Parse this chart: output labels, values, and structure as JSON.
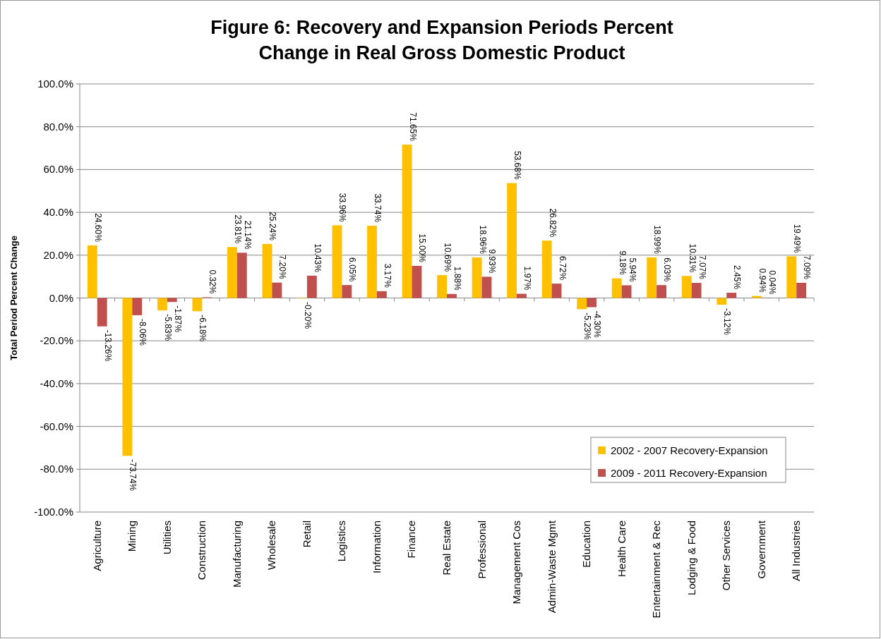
{
  "chart_data": {
    "type": "bar",
    "title": "Figure 6: Recovery and Expansion Periods Percent\nChange in Real Gross Domestic Product",
    "ylabel": "Total Period Percent Change",
    "categories": [
      "Agriculture",
      "Mining",
      "Utilities",
      "Construction",
      "Manufacturing",
      "Wholesale",
      "Retail",
      "Logistics",
      "Information",
      "Finance",
      "Real Estate",
      "Professional",
      "Management Cos",
      "Admin-Waste Mgmt",
      "Education",
      "Health Care",
      "Entertainment & Rec",
      "Lodging & Food",
      "Other Services",
      "Government",
      "All Industries"
    ],
    "series": [
      {
        "name": "2002 - 2007 Recovery-Expansion",
        "color": "#ffc000",
        "values": [
          24.6,
          -73.74,
          -5.83,
          -6.18,
          23.81,
          25.24,
          -0.2,
          33.96,
          33.74,
          71.65,
          10.69,
          18.96,
          53.68,
          26.82,
          -5.23,
          9.18,
          18.99,
          10.31,
          -3.12,
          0.94,
          19.49
        ],
        "value_labels": [
          "24.60%",
          "-73.74%",
          "-5.83%",
          "-6.18%",
          "23.81%",
          "25.24%",
          "-0.20%",
          "33.96%",
          "33.74%",
          "71.65%",
          "10.69%",
          "18.96%",
          "53.68%",
          "26.82%",
          "-5.23%",
          "9.18%",
          "18.99%",
          "10.31%",
          "-3.12%",
          "0.94%",
          "19.49%"
        ]
      },
      {
        "name": "2009 - 2011 Recovery-Expansion",
        "color": "#c0504d",
        "values": [
          -13.26,
          -8.06,
          -1.87,
          0.32,
          21.14,
          7.2,
          10.43,
          6.05,
          3.17,
          15.0,
          1.88,
          9.93,
          1.97,
          6.72,
          -4.3,
          5.94,
          6.03,
          7.07,
          2.45,
          0.04,
          7.09
        ],
        "value_labels": [
          "-13.26%",
          "-8.06%",
          "-1.87%",
          "0.32%",
          "21.14%",
          "7.20%",
          "10.43%",
          "6.05%",
          "3.17%",
          "15.00%",
          "1.88%",
          "9.93%",
          "1.97%",
          "6.72%",
          "-4.30%",
          "5.94%",
          "6.03%",
          "7.07%",
          "2.45%",
          "0.04%",
          "7.09%"
        ]
      }
    ],
    "ylim": [
      -100,
      100
    ],
    "yticks": [
      {
        "value": -100,
        "label": "-100.0%"
      },
      {
        "value": -80,
        "label": "-80.0%"
      },
      {
        "value": -60,
        "label": "-60.0%"
      },
      {
        "value": -40,
        "label": "-40.0%"
      },
      {
        "value": -20,
        "label": "-20.0%"
      },
      {
        "value": 0,
        "label": "0.0%"
      },
      {
        "value": 20,
        "label": "20.0%"
      },
      {
        "value": 40,
        "label": "40.0%"
      },
      {
        "value": 60,
        "label": "60.0%"
      },
      {
        "value": 80,
        "label": "80.0%"
      },
      {
        "value": 100,
        "label": "100.0%"
      }
    ],
    "grid": "y",
    "legend": "bottom right"
  }
}
